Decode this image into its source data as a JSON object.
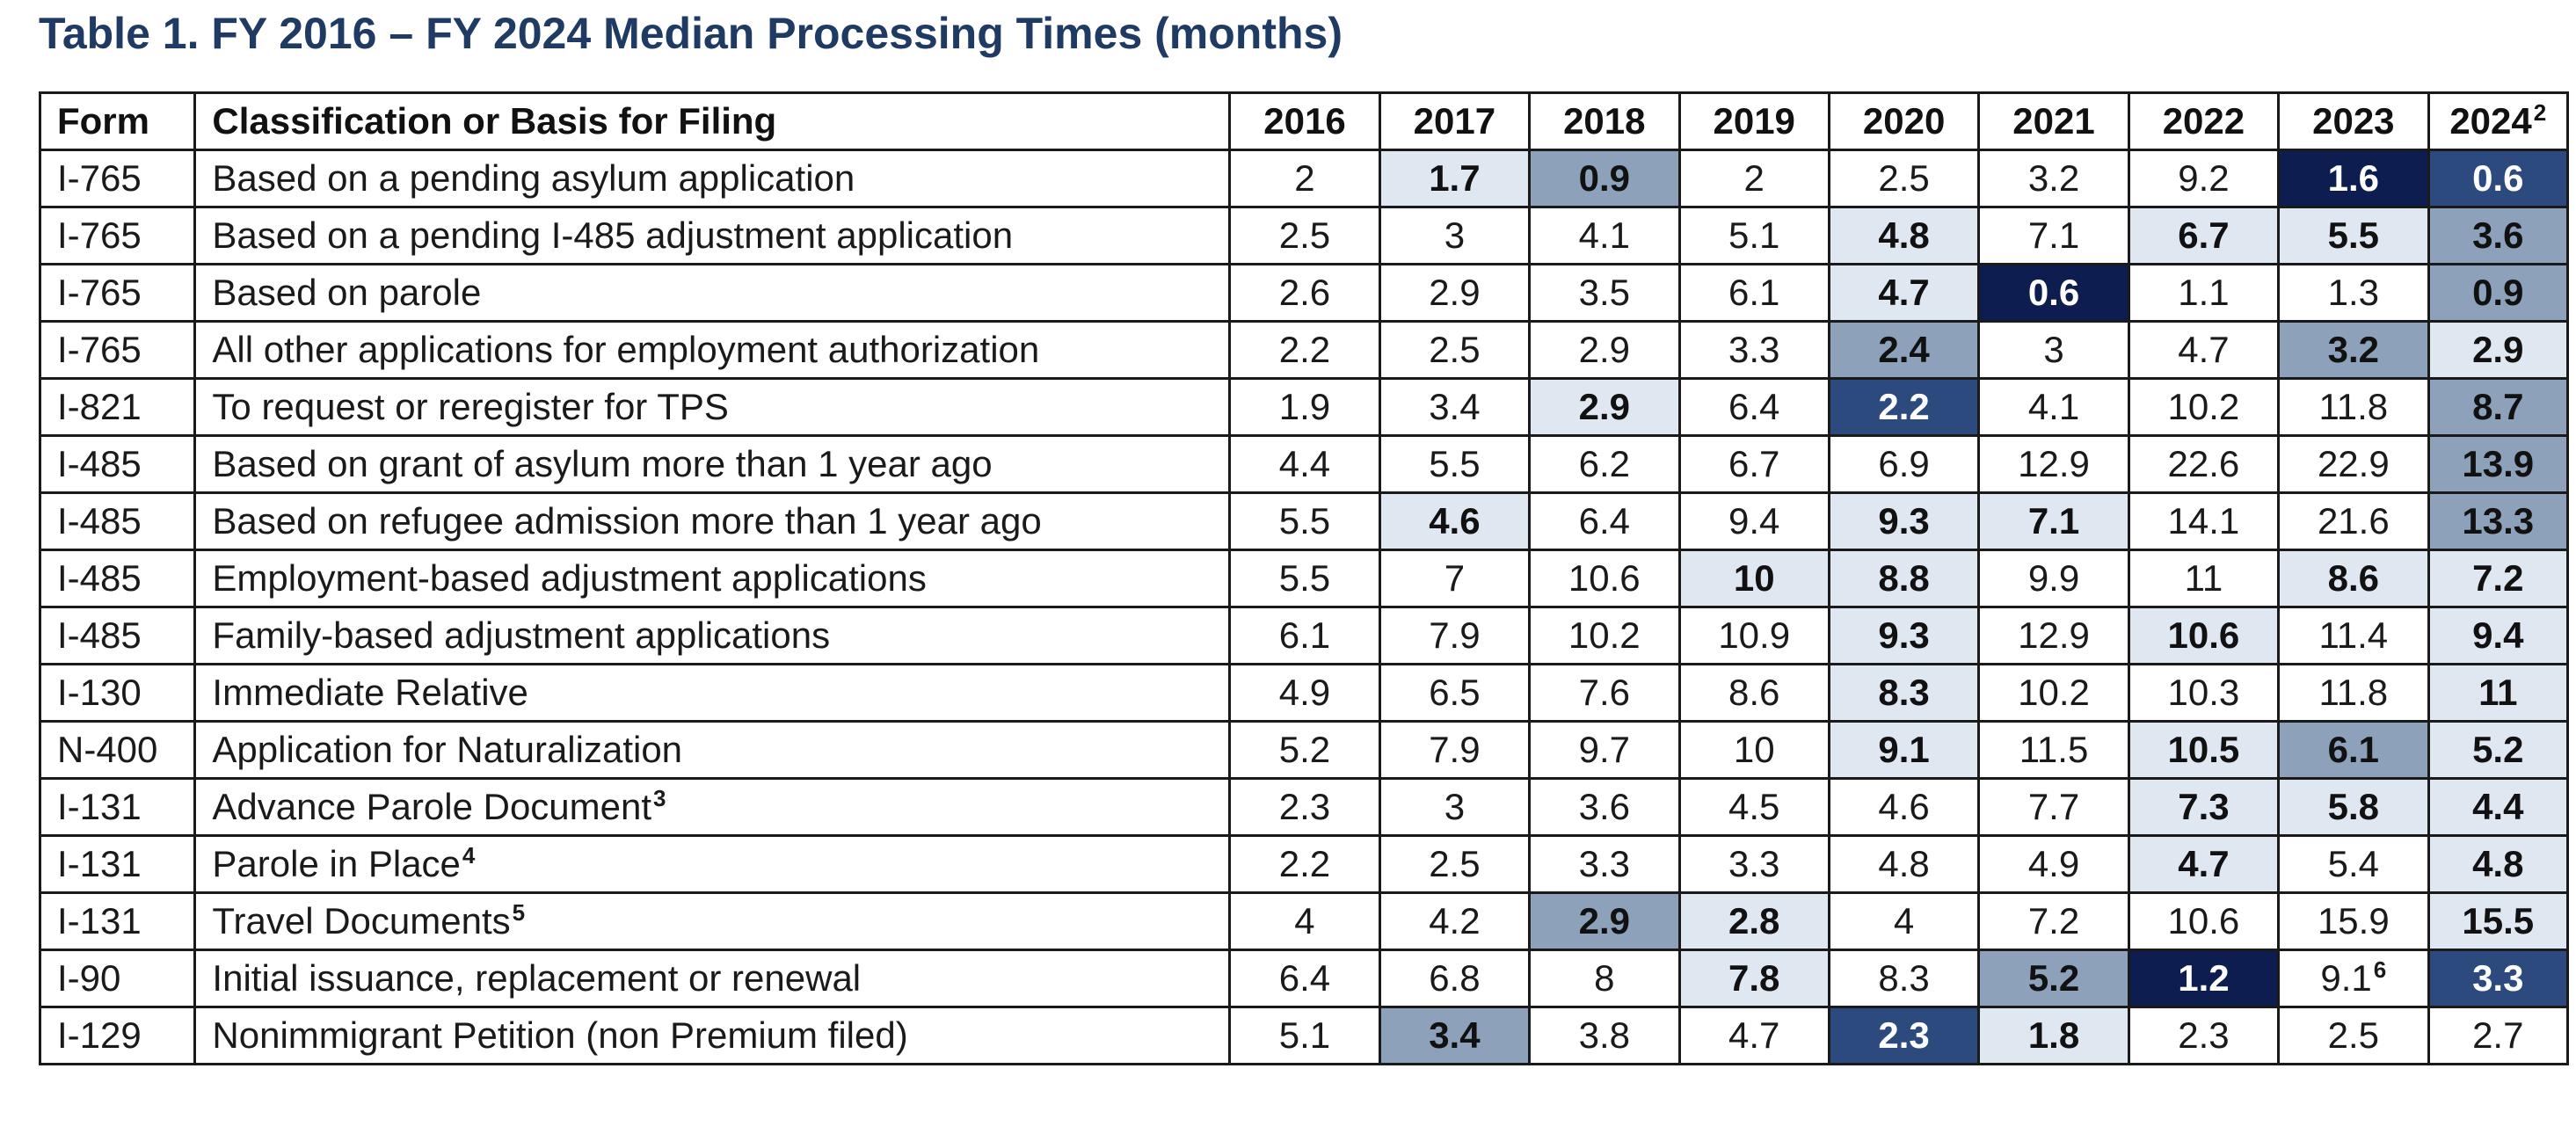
{
  "title": "Table 1. FY 2016 – FY 2024 Median Processing Times (months)",
  "columns": {
    "form": "Form",
    "classification": "Classification or Basis for Filing",
    "years": [
      "2016",
      "2017",
      "2018",
      "2019",
      "2020",
      "2021",
      "2022",
      "2023",
      "2024"
    ],
    "year_2024_note": "2"
  },
  "shade_colors": {
    "light": "#dfe7f1",
    "medium": "#8da1bb",
    "dark": "#2c4a7e",
    "darkest": "#0e1d4f"
  },
  "rows": [
    {
      "form": "I-765",
      "basis": "Based on a pending asylum application",
      "note": "",
      "values": [
        "2",
        "1.7",
        "0.9",
        "2",
        "2.5",
        "3.2",
        "9.2",
        "1.6",
        "0.6"
      ],
      "value_notes": [
        "",
        "",
        "",
        "",
        "",
        "",
        "",
        "",
        ""
      ],
      "shade": [
        0,
        1,
        2,
        0,
        0,
        0,
        0,
        4,
        3
      ]
    },
    {
      "form": "I-765",
      "basis": "Based on a pending I-485 adjustment application",
      "note": "",
      "values": [
        "2.5",
        "3",
        "4.1",
        "5.1",
        "4.8",
        "7.1",
        "6.7",
        "5.5",
        "3.6"
      ],
      "value_notes": [
        "",
        "",
        "",
        "",
        "",
        "",
        "",
        "",
        ""
      ],
      "shade": [
        0,
        0,
        0,
        0,
        1,
        0,
        1,
        1,
        2
      ]
    },
    {
      "form": "I-765",
      "basis": "Based on parole",
      "note": "",
      "values": [
        "2.6",
        "2.9",
        "3.5",
        "6.1",
        "4.7",
        "0.6",
        "1.1",
        "1.3",
        "0.9"
      ],
      "value_notes": [
        "",
        "",
        "",
        "",
        "",
        "",
        "",
        "",
        ""
      ],
      "shade": [
        0,
        0,
        0,
        0,
        1,
        4,
        0,
        0,
        2
      ]
    },
    {
      "form": "I-765",
      "basis": "All other applications for employment authorization",
      "note": "",
      "values": [
        "2.2",
        "2.5",
        "2.9",
        "3.3",
        "2.4",
        "3",
        "4.7",
        "3.2",
        "2.9"
      ],
      "value_notes": [
        "",
        "",
        "",
        "",
        "",
        "",
        "",
        "",
        ""
      ],
      "shade": [
        0,
        0,
        0,
        0,
        2,
        0,
        0,
        2,
        1
      ]
    },
    {
      "form": "I-821",
      "basis": "To request or reregister for TPS",
      "note": "",
      "values": [
        "1.9",
        "3.4",
        "2.9",
        "6.4",
        "2.2",
        "4.1",
        "10.2",
        "11.8",
        "8.7"
      ],
      "value_notes": [
        "",
        "",
        "",
        "",
        "",
        "",
        "",
        "",
        ""
      ],
      "shade": [
        0,
        0,
        1,
        0,
        3,
        0,
        0,
        0,
        2
      ]
    },
    {
      "form": "I-485",
      "basis": "Based on grant of asylum more than 1 year ago",
      "note": "",
      "values": [
        "4.4",
        "5.5",
        "6.2",
        "6.7",
        "6.9",
        "12.9",
        "22.6",
        "22.9",
        "13.9"
      ],
      "value_notes": [
        "",
        "",
        "",
        "",
        "",
        "",
        "",
        "",
        ""
      ],
      "shade": [
        0,
        0,
        0,
        0,
        0,
        0,
        0,
        0,
        2
      ]
    },
    {
      "form": "I-485",
      "basis": "Based on refugee admission more than 1 year ago",
      "note": "",
      "values": [
        "5.5",
        "4.6",
        "6.4",
        "9.4",
        "9.3",
        "7.1",
        "14.1",
        "21.6",
        "13.3"
      ],
      "value_notes": [
        "",
        "",
        "",
        "",
        "",
        "",
        "",
        "",
        ""
      ],
      "shade": [
        0,
        1,
        0,
        0,
        1,
        1,
        0,
        0,
        2
      ]
    },
    {
      "form": "I-485",
      "basis": "Employment-based adjustment applications",
      "note": "",
      "values": [
        "5.5",
        "7",
        "10.6",
        "10",
        "8.8",
        "9.9",
        "11",
        "8.6",
        "7.2"
      ],
      "value_notes": [
        "",
        "",
        "",
        "",
        "",
        "",
        "",
        "",
        ""
      ],
      "shade": [
        0,
        0,
        0,
        1,
        1,
        0,
        0,
        1,
        1
      ]
    },
    {
      "form": "I-485",
      "basis": "Family-based adjustment applications",
      "note": "",
      "values": [
        "6.1",
        "7.9",
        "10.2",
        "10.9",
        "9.3",
        "12.9",
        "10.6",
        "11.4",
        "9.4"
      ],
      "value_notes": [
        "",
        "",
        "",
        "",
        "",
        "",
        "",
        "",
        ""
      ],
      "shade": [
        0,
        0,
        0,
        0,
        1,
        0,
        1,
        0,
        1
      ]
    },
    {
      "form": "I-130",
      "basis": "Immediate Relative",
      "note": "",
      "values": [
        "4.9",
        "6.5",
        "7.6",
        "8.6",
        "8.3",
        "10.2",
        "10.3",
        "11.8",
        "11"
      ],
      "value_notes": [
        "",
        "",
        "",
        "",
        "",
        "",
        "",
        "",
        ""
      ],
      "shade": [
        0,
        0,
        0,
        0,
        1,
        0,
        0,
        0,
        1
      ]
    },
    {
      "form": "N-400",
      "basis": "Application for Naturalization",
      "note": "",
      "values": [
        "5.2",
        "7.9",
        "9.7",
        "10",
        "9.1",
        "11.5",
        "10.5",
        "6.1",
        "5.2"
      ],
      "value_notes": [
        "",
        "",
        "",
        "",
        "",
        "",
        "",
        "",
        ""
      ],
      "shade": [
        0,
        0,
        0,
        0,
        1,
        0,
        1,
        2,
        1
      ]
    },
    {
      "form": "I-131",
      "basis": "Advance Parole Document",
      "note": "3",
      "values": [
        "2.3",
        "3",
        "3.6",
        "4.5",
        "4.6",
        "7.7",
        "7.3",
        "5.8",
        "4.4"
      ],
      "value_notes": [
        "",
        "",
        "",
        "",
        "",
        "",
        "",
        "",
        ""
      ],
      "shade": [
        0,
        0,
        0,
        0,
        0,
        0,
        1,
        1,
        1
      ]
    },
    {
      "form": "I-131",
      "basis": "Parole in Place",
      "note": "4",
      "values": [
        "2.2",
        "2.5",
        "3.3",
        "3.3",
        "4.8",
        "4.9",
        "4.7",
        "5.4",
        "4.8"
      ],
      "value_notes": [
        "",
        "",
        "",
        "",
        "",
        "",
        "",
        "",
        ""
      ],
      "shade": [
        0,
        0,
        0,
        0,
        0,
        0,
        1,
        0,
        1
      ]
    },
    {
      "form": "I-131",
      "basis": "Travel Documents",
      "note": "5",
      "values": [
        "4",
        "4.2",
        "2.9",
        "2.8",
        "4",
        "7.2",
        "10.6",
        "15.9",
        "15.5"
      ],
      "value_notes": [
        "",
        "",
        "",
        "",
        "",
        "",
        "",
        "",
        ""
      ],
      "shade": [
        0,
        0,
        2,
        1,
        0,
        0,
        0,
        0,
        1
      ]
    },
    {
      "form": "I-90",
      "basis": "Initial issuance, replacement or renewal",
      "note": "",
      "values": [
        "6.4",
        "6.8",
        "8",
        "7.8",
        "8.3",
        "5.2",
        "1.2",
        "9.1",
        "3.3"
      ],
      "value_notes": [
        "",
        "",
        "",
        "",
        "",
        "",
        "",
        "6",
        ""
      ],
      "shade": [
        0,
        0,
        0,
        1,
        0,
        2,
        4,
        0,
        3
      ]
    },
    {
      "form": "I-129",
      "basis": "Nonimmigrant Petition (non Premium filed)",
      "note": "",
      "values": [
        "5.1",
        "3.4",
        "3.8",
        "4.7",
        "2.3",
        "1.8",
        "2.3",
        "2.5",
        "2.7"
      ],
      "value_notes": [
        "",
        "",
        "",
        "",
        "",
        "",
        "",
        "",
        ""
      ],
      "shade": [
        0,
        2,
        0,
        0,
        3,
        1,
        0,
        0,
        0
      ]
    }
  ]
}
